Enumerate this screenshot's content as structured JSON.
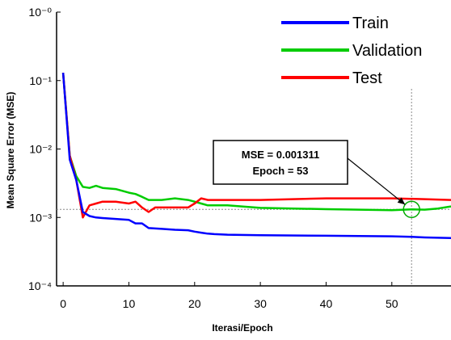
{
  "chart_data": {
    "type": "line",
    "xlabel": "Iterasi/Epoch",
    "ylabel": "Mean Square Error (MSE)",
    "yscale": "log",
    "xlim": [
      -1,
      59
    ],
    "ylim": [
      0.0001,
      1
    ],
    "x_ticks": [
      0,
      10,
      20,
      30,
      40,
      50
    ],
    "y_ticks": [
      {
        "value": 1,
        "label": "10⁻⁰"
      },
      {
        "value": 0.1,
        "label": "10⁻¹"
      },
      {
        "value": 0.01,
        "label": "10⁻²"
      },
      {
        "value": 0.001,
        "label": "10⁻³"
      },
      {
        "value": 0.0001,
        "label": "10⁻⁴"
      }
    ],
    "grid": false,
    "legend_position": "top-right",
    "series": [
      {
        "name": "Train",
        "color": "#0000ff",
        "points": [
          [
            0,
            0.13
          ],
          [
            1,
            0.007
          ],
          [
            2,
            0.0035
          ],
          [
            3,
            0.0012
          ],
          [
            4,
            0.00105
          ],
          [
            5,
            0.001
          ],
          [
            6,
            0.00098
          ],
          [
            8,
            0.00095
          ],
          [
            10,
            0.00092
          ],
          [
            11,
            0.00082
          ],
          [
            12,
            0.00082
          ],
          [
            13,
            0.0007
          ],
          [
            15,
            0.00068
          ],
          [
            17,
            0.00066
          ],
          [
            19,
            0.00065
          ],
          [
            20,
            0.00062
          ],
          [
            21,
            0.0006
          ],
          [
            22,
            0.00058
          ],
          [
            23,
            0.00057
          ],
          [
            25,
            0.00056
          ],
          [
            30,
            0.00055
          ],
          [
            40,
            0.00054
          ],
          [
            50,
            0.00053
          ],
          [
            53,
            0.00052
          ],
          [
            55,
            0.00051
          ],
          [
            59,
            0.0005
          ]
        ]
      },
      {
        "name": "Validation",
        "color": "#00cc00",
        "points": [
          [
            0,
            0.13
          ],
          [
            1,
            0.008
          ],
          [
            2,
            0.004
          ],
          [
            3,
            0.0028
          ],
          [
            4,
            0.0027
          ],
          [
            5,
            0.0029
          ],
          [
            6,
            0.0027
          ],
          [
            8,
            0.0026
          ],
          [
            10,
            0.0023
          ],
          [
            11,
            0.0022
          ],
          [
            12,
            0.002
          ],
          [
            13,
            0.0018
          ],
          [
            15,
            0.0018
          ],
          [
            17,
            0.0019
          ],
          [
            19,
            0.0018
          ],
          [
            20,
            0.0017
          ],
          [
            21,
            0.0016
          ],
          [
            22,
            0.0015
          ],
          [
            25,
            0.0015
          ],
          [
            30,
            0.00138
          ],
          [
            40,
            0.00132
          ],
          [
            50,
            0.00128
          ],
          [
            53,
            0.001311
          ],
          [
            55,
            0.0013
          ],
          [
            57,
            0.00135
          ],
          [
            59,
            0.00145
          ]
        ]
      },
      {
        "name": "Test",
        "color": "#ff0000",
        "points": [
          [
            0,
            0.13
          ],
          [
            1,
            0.008
          ],
          [
            2,
            0.0035
          ],
          [
            3,
            0.001
          ],
          [
            4,
            0.0015
          ],
          [
            5,
            0.0016
          ],
          [
            6,
            0.0017
          ],
          [
            8,
            0.0017
          ],
          [
            10,
            0.0016
          ],
          [
            11,
            0.0017
          ],
          [
            12,
            0.0014
          ],
          [
            13,
            0.0012
          ],
          [
            14,
            0.0014
          ],
          [
            16,
            0.0014
          ],
          [
            19,
            0.0014
          ],
          [
            20,
            0.0016
          ],
          [
            21,
            0.0019
          ],
          [
            22,
            0.0018
          ],
          [
            25,
            0.0018
          ],
          [
            30,
            0.0018
          ],
          [
            40,
            0.0019
          ],
          [
            50,
            0.0019
          ],
          [
            55,
            0.00185
          ],
          [
            59,
            0.0018
          ]
        ]
      }
    ],
    "best": {
      "epoch": 53,
      "value": 0.001311
    },
    "annotation": {
      "mse_text": "MSE = 0.001311",
      "epoch_text": "Epoch = 53"
    }
  }
}
